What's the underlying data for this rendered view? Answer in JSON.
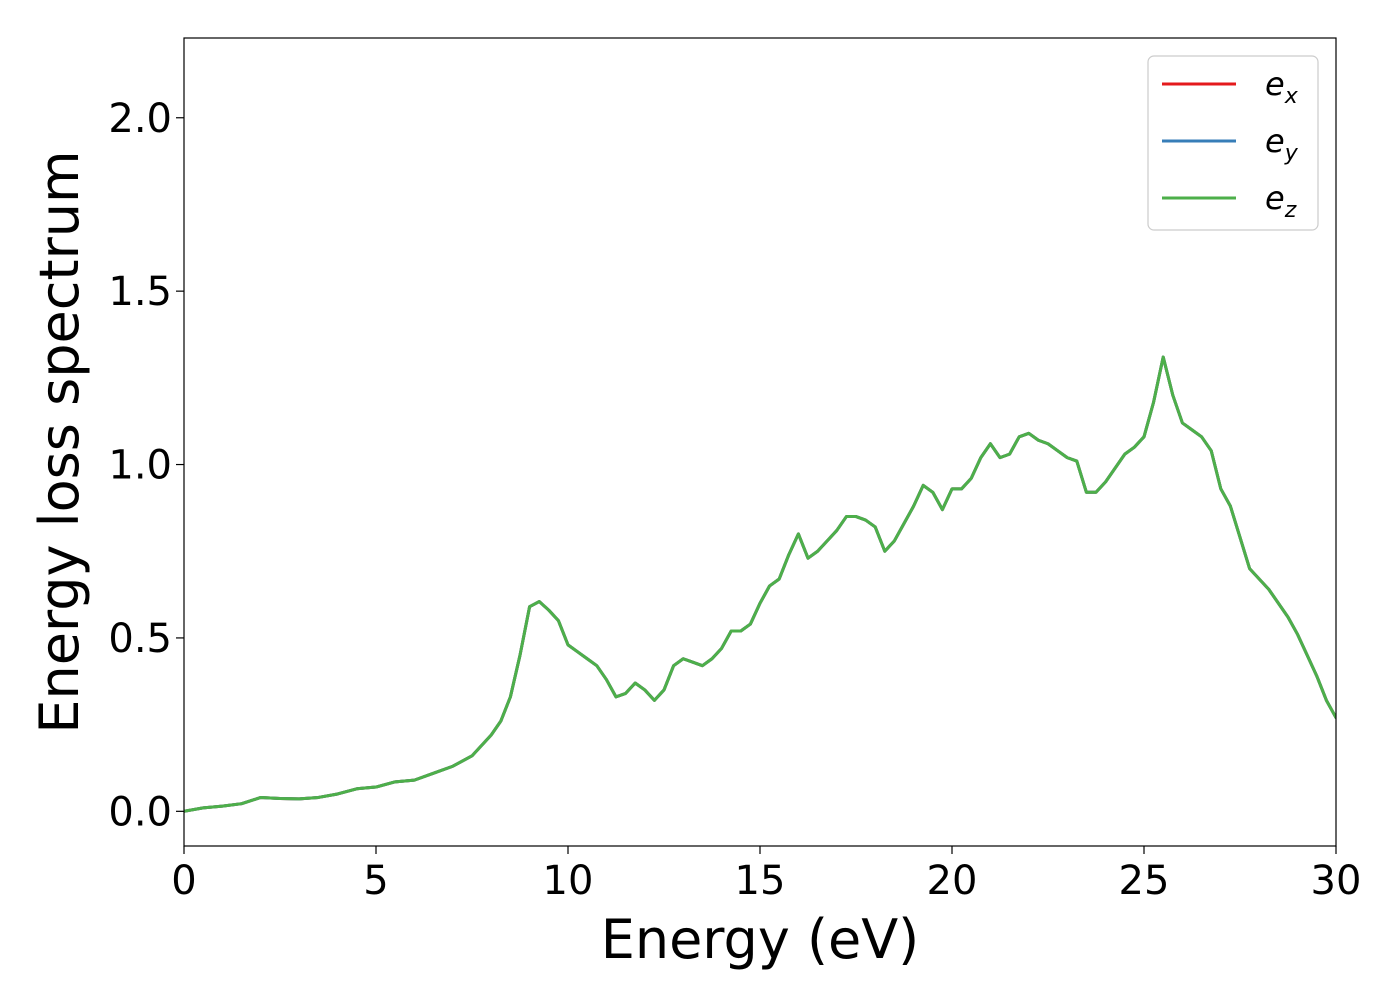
{
  "chart_data": {
    "type": "line",
    "title": "",
    "xlabel": "Energy (eV)",
    "ylabel": "Energy loss spectrum",
    "xlim": [
      0,
      30
    ],
    "ylim": [
      -0.1,
      2.23
    ],
    "xticks": [
      0,
      5,
      10,
      15,
      20,
      25,
      30
    ],
    "xtick_labels": [
      "0",
      "5",
      "10",
      "15",
      "20",
      "25",
      "30"
    ],
    "yticks": [
      0.0,
      0.5,
      1.0,
      1.5,
      2.0
    ],
    "ytick_labels": [
      "0.0",
      "0.5",
      "1.0",
      "1.5",
      "2.0"
    ],
    "grid": false,
    "legend_position": "top-right",
    "x": [
      0,
      0.5,
      1,
      1.5,
      2,
      2.5,
      3,
      3.5,
      4,
      4.5,
      5,
      5.5,
      6,
      6.5,
      7,
      7.5,
      8,
      8.25,
      8.5,
      8.75,
      9,
      9.25,
      9.5,
      9.75,
      10,
      10.25,
      10.5,
      10.75,
      11,
      11.25,
      11.5,
      11.75,
      12,
      12.25,
      12.5,
      12.75,
      13,
      13.25,
      13.5,
      13.75,
      14,
      14.25,
      14.5,
      14.75,
      15,
      15.25,
      15.5,
      15.75,
      16,
      16.25,
      16.5,
      16.75,
      17,
      17.25,
      17.5,
      17.75,
      18,
      18.25,
      18.5,
      18.75,
      19,
      19.25,
      19.5,
      19.75,
      20,
      20.25,
      20.5,
      20.75,
      21,
      21.25,
      21.5,
      21.75,
      22,
      22.25,
      22.5,
      22.75,
      23,
      23.25,
      23.5,
      23.75,
      24,
      24.25,
      24.5,
      24.75,
      25,
      25.25,
      25.5,
      25.75,
      26,
      26.25,
      26.5,
      26.75,
      27,
      27.25,
      27.5,
      27.75,
      28,
      28.25,
      28.5,
      28.75,
      29,
      29.25,
      29.5,
      29.75,
      30
    ],
    "series": [
      {
        "name": "e_x",
        "color": "#e41a1c",
        "values": [
          0.0,
          0.01,
          0.015,
          0.022,
          0.04,
          0.037,
          0.036,
          0.04,
          0.05,
          0.065,
          0.07,
          0.085,
          0.09,
          0.11,
          0.13,
          0.16,
          0.22,
          0.26,
          0.33,
          0.45,
          0.59,
          0.605,
          0.58,
          0.55,
          0.48,
          0.46,
          0.44,
          0.42,
          0.38,
          0.33,
          0.34,
          0.37,
          0.35,
          0.32,
          0.35,
          0.42,
          0.44,
          0.43,
          0.42,
          0.44,
          0.47,
          0.52,
          0.52,
          0.54,
          0.6,
          0.65,
          0.67,
          0.74,
          0.8,
          0.73,
          0.75,
          0.78,
          0.81,
          0.85,
          0.85,
          0.84,
          0.82,
          0.75,
          0.78,
          0.83,
          0.88,
          0.94,
          0.92,
          0.87,
          0.93,
          0.93,
          0.96,
          1.02,
          1.06,
          1.02,
          1.03,
          1.08,
          1.09,
          1.07,
          1.06,
          1.04,
          1.02,
          1.01,
          0.92,
          0.92,
          0.95,
          0.99,
          1.03,
          1.05,
          1.08,
          1.18,
          1.31,
          1.2,
          1.12,
          1.1,
          1.08,
          1.04,
          0.93,
          0.88,
          0.79,
          0.7,
          0.67,
          0.64,
          0.6,
          0.56,
          0.51,
          0.45,
          0.39,
          0.32,
          0.27
        ]
      },
      {
        "name": "e_y",
        "color": "#377eb8",
        "values": [
          0.0,
          0.01,
          0.015,
          0.022,
          0.04,
          0.037,
          0.036,
          0.04,
          0.05,
          0.065,
          0.07,
          0.085,
          0.09,
          0.11,
          0.13,
          0.16,
          0.22,
          0.26,
          0.33,
          0.45,
          0.59,
          0.605,
          0.58,
          0.55,
          0.48,
          0.46,
          0.44,
          0.42,
          0.38,
          0.33,
          0.34,
          0.37,
          0.35,
          0.32,
          0.35,
          0.42,
          0.44,
          0.43,
          0.42,
          0.44,
          0.47,
          0.52,
          0.52,
          0.54,
          0.6,
          0.65,
          0.67,
          0.74,
          0.8,
          0.73,
          0.75,
          0.78,
          0.81,
          0.85,
          0.85,
          0.84,
          0.82,
          0.75,
          0.78,
          0.83,
          0.88,
          0.94,
          0.92,
          0.87,
          0.93,
          0.93,
          0.96,
          1.02,
          1.06,
          1.02,
          1.03,
          1.08,
          1.09,
          1.07,
          1.06,
          1.04,
          1.02,
          1.01,
          0.92,
          0.92,
          0.95,
          0.99,
          1.03,
          1.05,
          1.08,
          1.18,
          1.31,
          1.2,
          1.12,
          1.1,
          1.08,
          1.04,
          0.93,
          0.88,
          0.79,
          0.7,
          0.67,
          0.64,
          0.6,
          0.56,
          0.51,
          0.45,
          0.39,
          0.32,
          0.27
        ]
      },
      {
        "name": "e_z",
        "color": "#4daf4a",
        "values": [
          0.0,
          0.01,
          0.015,
          0.022,
          0.04,
          0.037,
          0.036,
          0.04,
          0.05,
          0.065,
          0.07,
          0.085,
          0.09,
          0.11,
          0.13,
          0.16,
          0.22,
          0.26,
          0.33,
          0.45,
          0.59,
          0.605,
          0.58,
          0.55,
          0.48,
          0.46,
          0.44,
          0.42,
          0.38,
          0.33,
          0.34,
          0.37,
          0.35,
          0.32,
          0.35,
          0.42,
          0.44,
          0.43,
          0.42,
          0.44,
          0.47,
          0.52,
          0.52,
          0.54,
          0.6,
          0.65,
          0.67,
          0.74,
          0.8,
          0.73,
          0.75,
          0.78,
          0.81,
          0.85,
          0.85,
          0.84,
          0.82,
          0.75,
          0.78,
          0.83,
          0.88,
          0.94,
          0.92,
          0.87,
          0.93,
          0.93,
          0.96,
          1.02,
          1.06,
          1.02,
          1.03,
          1.08,
          1.09,
          1.07,
          1.06,
          1.04,
          1.02,
          1.01,
          0.92,
          0.92,
          0.95,
          0.99,
          1.03,
          1.05,
          1.08,
          1.18,
          1.31,
          1.2,
          1.12,
          1.1,
          1.08,
          1.04,
          0.93,
          0.88,
          0.79,
          0.7,
          0.67,
          0.64,
          0.6,
          0.56,
          0.51,
          0.45,
          0.39,
          0.32,
          0.27
        ]
      }
    ],
    "legend": [
      {
        "base": "e",
        "sub": "x",
        "color": "#e41a1c"
      },
      {
        "base": "e",
        "sub": "y",
        "color": "#377eb8"
      },
      {
        "base": "e",
        "sub": "z",
        "color": "#4daf4a"
      }
    ]
  }
}
